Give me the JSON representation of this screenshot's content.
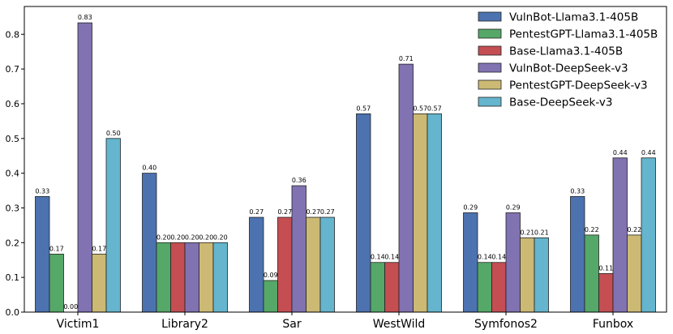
{
  "chart_data": {
    "type": "bar",
    "title": "",
    "xlabel": "",
    "ylabel": "",
    "ylim": [
      0,
      0.88
    ],
    "yticks": [
      "0.0",
      "0.1",
      "0.2",
      "0.3",
      "0.4",
      "0.5",
      "0.6",
      "0.7",
      "0.8"
    ],
    "grid": false,
    "legend_position": "top-right",
    "categories": [
      "Victim1",
      "Library2",
      "Sar",
      "WestWild",
      "Symfonos2",
      "Funbox"
    ],
    "series": [
      {
        "name": "VulnBot-Llama3.1-405B",
        "color": "#4c72b0",
        "values": [
          0.333,
          0.4,
          0.273,
          0.571,
          0.286,
          0.333
        ],
        "labels": [
          "0.33",
          "0.40",
          "0.27",
          "0.57",
          "0.29",
          "0.33"
        ]
      },
      {
        "name": "PentestGPT-Llama3.1-405B",
        "color": "#55a868",
        "values": [
          0.167,
          0.2,
          0.091,
          0.143,
          0.143,
          0.222
        ],
        "labels": [
          "0.17",
          "0.20",
          "0.09",
          "0.14",
          "0.14",
          "0.22"
        ]
      },
      {
        "name": "Base-Llama3.1-405B",
        "color": "#c44e52",
        "values": [
          0.0,
          0.2,
          0.273,
          0.143,
          0.143,
          0.111
        ],
        "labels": [
          "0.00",
          "0.20",
          "0.27",
          "0.14",
          "0.14",
          "0.11"
        ]
      },
      {
        "name": "VulnBot-DeepSeek-v3",
        "color": "#8172b2",
        "values": [
          0.833,
          0.2,
          0.364,
          0.714,
          0.286,
          0.444
        ],
        "labels": [
          "0.83",
          "0.20",
          "0.36",
          "0.71",
          "0.29",
          "0.44"
        ]
      },
      {
        "name": "PentestGPT-DeepSeek-v3",
        "color": "#ccb974",
        "values": [
          0.167,
          0.2,
          0.273,
          0.571,
          0.214,
          0.222
        ],
        "labels": [
          "0.17",
          "0.20",
          "0.27",
          "0.57",
          "0.21",
          "0.22"
        ]
      },
      {
        "name": "Base-DeepSeek-v3",
        "color": "#64b5cd",
        "values": [
          0.5,
          0.2,
          0.273,
          0.571,
          0.214,
          0.444
        ],
        "labels": [
          "0.50",
          "0.20",
          "0.27",
          "0.57",
          "0.21",
          "0.44"
        ]
      }
    ]
  }
}
